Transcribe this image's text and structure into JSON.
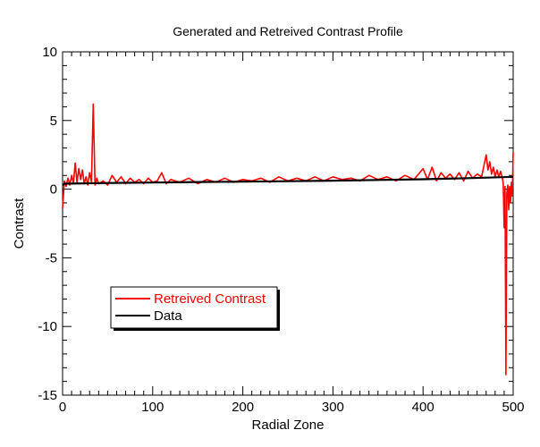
{
  "chart_data": {
    "type": "line",
    "title": "Generated and Retreived Contrast Profile",
    "xlabel": "Radial Zone",
    "ylabel": "Contrast",
    "xlim": [
      0,
      500
    ],
    "ylim": [
      -15,
      10
    ],
    "xticks": [
      0,
      100,
      200,
      300,
      400,
      500
    ],
    "yticks": [
      -15,
      -10,
      -5,
      0,
      5,
      10
    ],
    "grid": false,
    "legend_position": "lower-left",
    "series": [
      {
        "name": "Retreived Contrast",
        "color": "#ff0000",
        "x": [
          0,
          2,
          4,
          6,
          8,
          10,
          12,
          14,
          16,
          18,
          20,
          22,
          24,
          26,
          28,
          30,
          32,
          34,
          36,
          38,
          40,
          45,
          50,
          55,
          60,
          65,
          70,
          75,
          80,
          85,
          90,
          95,
          100,
          105,
          110,
          115,
          120,
          130,
          140,
          150,
          160,
          170,
          180,
          190,
          200,
          210,
          220,
          230,
          240,
          250,
          260,
          270,
          280,
          290,
          300,
          310,
          320,
          330,
          340,
          350,
          360,
          370,
          380,
          390,
          400,
          405,
          410,
          415,
          420,
          425,
          430,
          435,
          440,
          445,
          450,
          455,
          460,
          465,
          470,
          472,
          474,
          476,
          478,
          480,
          482,
          484,
          486,
          488,
          489,
          490,
          491,
          492,
          493,
          494,
          495,
          496,
          497,
          498,
          499,
          500
        ],
        "y": [
          -1.4,
          0.6,
          0.2,
          0.8,
          0.3,
          1.0,
          0.4,
          1.9,
          0.5,
          1.5,
          0.7,
          1.4,
          0.4,
          0.9,
          0.3,
          1.2,
          0.5,
          6.2,
          0.3,
          0.8,
          0.4,
          0.6,
          0.3,
          1.0,
          0.5,
          0.9,
          0.4,
          0.8,
          0.5,
          0.7,
          0.4,
          0.8,
          0.5,
          0.6,
          1.2,
          0.4,
          0.7,
          0.5,
          0.8,
          0.4,
          0.7,
          0.5,
          0.8,
          0.5,
          0.7,
          0.6,
          0.8,
          0.5,
          0.9,
          0.6,
          0.8,
          0.6,
          0.9,
          0.6,
          0.9,
          0.7,
          0.8,
          0.6,
          1.0,
          0.7,
          0.9,
          0.6,
          1.0,
          0.7,
          1.5,
          0.7,
          1.6,
          0.6,
          1.2,
          0.8,
          1.1,
          0.7,
          1.2,
          0.6,
          1.3,
          0.8,
          1.1,
          0.9,
          2.5,
          1.4,
          2.0,
          1.1,
          1.6,
          0.9,
          1.4,
          0.9,
          1.3,
          0.8,
          0.4,
          -2.8,
          0.2,
          -13.5,
          -0.3,
          0.3,
          -1.5,
          0.2,
          -1.0,
          0.5,
          -0.5,
          2.7
        ]
      },
      {
        "name": "Data",
        "color": "#000000",
        "x": [
          0,
          2,
          50,
          100,
          150,
          200,
          250,
          300,
          350,
          400,
          450,
          500
        ],
        "y": [
          0.3,
          0.4,
          0.45,
          0.48,
          0.52,
          0.55,
          0.58,
          0.62,
          0.67,
          0.72,
          0.8,
          0.9
        ]
      }
    ]
  }
}
